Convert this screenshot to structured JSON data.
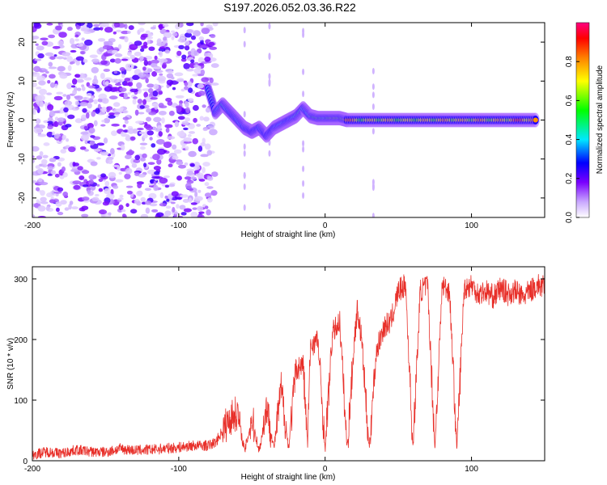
{
  "title": "S197.2026.052.03.36.R22",
  "chart_data": [
    {
      "type": "heatmap",
      "xlabel": "Height of straight line (km)",
      "ylabel": "Frequency (Hz)",
      "xlim": [
        -200,
        150
      ],
      "ylim": [
        -25,
        25
      ],
      "xticks": [
        -200,
        -100,
        0,
        100
      ],
      "yticks": [
        -20,
        -10,
        0,
        10,
        20
      ],
      "colorbar": {
        "label": "Normalized spectral amplitude",
        "range": [
          0,
          1
        ],
        "ticks": [
          0.0,
          0.2,
          0.4,
          0.6,
          0.8
        ],
        "tick_labels": [
          "0.0",
          "0.2",
          "0.4",
          "0.6",
          "0.8"
        ]
      },
      "noise_region_x": [
        -200,
        -75
      ],
      "tone_track": [
        {
          "x": -80,
          "y": 8,
          "amp": 0.35
        },
        {
          "x": -75,
          "y": 2,
          "amp": 0.4
        },
        {
          "x": -70,
          "y": 4,
          "amp": 0.45
        },
        {
          "x": -65,
          "y": 2,
          "amp": 0.4
        },
        {
          "x": -60,
          "y": 0,
          "amp": 0.4
        },
        {
          "x": -55,
          "y": -2,
          "amp": 0.35
        },
        {
          "x": -50,
          "y": -3,
          "amp": 0.3
        },
        {
          "x": -45,
          "y": -2,
          "amp": 0.35
        },
        {
          "x": -40,
          "y": -4,
          "amp": 0.3
        },
        {
          "x": -35,
          "y": -2,
          "amp": 0.35
        },
        {
          "x": -30,
          "y": -1,
          "amp": 0.4
        },
        {
          "x": -25,
          "y": 0,
          "amp": 0.4
        },
        {
          "x": -20,
          "y": 1,
          "amp": 0.45
        },
        {
          "x": -15,
          "y": 3,
          "amp": 0.5
        },
        {
          "x": -10,
          "y": 1,
          "amp": 0.5
        },
        {
          "x": -5,
          "y": 0.5,
          "amp": 0.55
        },
        {
          "x": 0,
          "y": 0.5,
          "amp": 0.6
        },
        {
          "x": 5,
          "y": 0.5,
          "amp": 0.6
        },
        {
          "x": 10,
          "y": 0.5,
          "amp": 0.65
        },
        {
          "x": 15,
          "y": 0,
          "amp": 0.9
        },
        {
          "x": 25,
          "y": 0,
          "amp": 0.7
        },
        {
          "x": 35,
          "y": 0,
          "amp": 0.75
        },
        {
          "x": 45,
          "y": 0,
          "amp": 0.75
        },
        {
          "x": 55,
          "y": 0,
          "amp": 0.7
        },
        {
          "x": 65,
          "y": 0,
          "amp": 0.75
        },
        {
          "x": 75,
          "y": 0,
          "amp": 0.75
        },
        {
          "x": 85,
          "y": 0,
          "amp": 0.8
        },
        {
          "x": 95,
          "y": 0,
          "amp": 0.75
        },
        {
          "x": 105,
          "y": 0,
          "amp": 0.8
        },
        {
          "x": 115,
          "y": 0,
          "amp": 0.75
        },
        {
          "x": 125,
          "y": 0,
          "amp": 0.8
        },
        {
          "x": 135,
          "y": 0,
          "amp": 0.9
        },
        {
          "x": 145,
          "y": 0,
          "amp": 0.8
        }
      ]
    },
    {
      "type": "line",
      "xlabel": "Height of straight line (km)",
      "ylabel": "SNR (10 * v/v)",
      "xlim": [
        -200,
        150
      ],
      "ylim": [
        0,
        320
      ],
      "xticks": [
        -200,
        -100,
        0,
        100
      ],
      "yticks": [
        0,
        100,
        200,
        300
      ],
      "series": [
        {
          "name": "SNR",
          "color": "#e8302a",
          "x": [
            -200,
            -190,
            -180,
            -170,
            -160,
            -150,
            -140,
            -130,
            -120,
            -110,
            -100,
            -90,
            -80,
            -75,
            -65,
            -60,
            -55,
            -50,
            -45,
            -40,
            -35,
            -30,
            -25,
            -20,
            -15,
            -12,
            -10,
            -5,
            0,
            5,
            10,
            15,
            20,
            22,
            25,
            30,
            35,
            40,
            45,
            50,
            55,
            60,
            65,
            70,
            75,
            80,
            85,
            90,
            95,
            100,
            105,
            110,
            115,
            120,
            125,
            130,
            135,
            140,
            145,
            150
          ],
          "values": [
            10,
            15,
            12,
            18,
            15,
            14,
            20,
            17,
            18,
            20,
            22,
            25,
            25,
            30,
            70,
            80,
            15,
            70,
            15,
            90,
            20,
            120,
            20,
            150,
            160,
            25,
            190,
            200,
            20,
            210,
            230,
            20,
            200,
            250,
            200,
            20,
            180,
            220,
            230,
            280,
            290,
            20,
            280,
            290,
            20,
            290,
            280,
            20,
            285,
            290,
            275,
            280,
            270,
            285,
            275,
            280,
            270,
            280,
            290,
            285
          ]
        }
      ]
    }
  ]
}
